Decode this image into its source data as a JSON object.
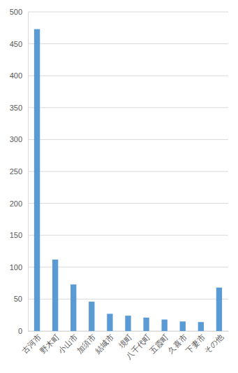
{
  "chart_data": {
    "type": "bar",
    "categories": [
      "古河市",
      "野木町",
      "小山市",
      "加須市",
      "結城市",
      "境町",
      "八千代町",
      "五霞町",
      "久喜市",
      "下妻市",
      "その他"
    ],
    "values": [
      473,
      112,
      73,
      46,
      27,
      24,
      21,
      18,
      15,
      14,
      68
    ],
    "color": "#5b9bd5",
    "ylim": [
      0,
      500
    ],
    "yticks": [
      0,
      50,
      100,
      150,
      200,
      250,
      300,
      350,
      400,
      450,
      500
    ],
    "grid": true
  }
}
